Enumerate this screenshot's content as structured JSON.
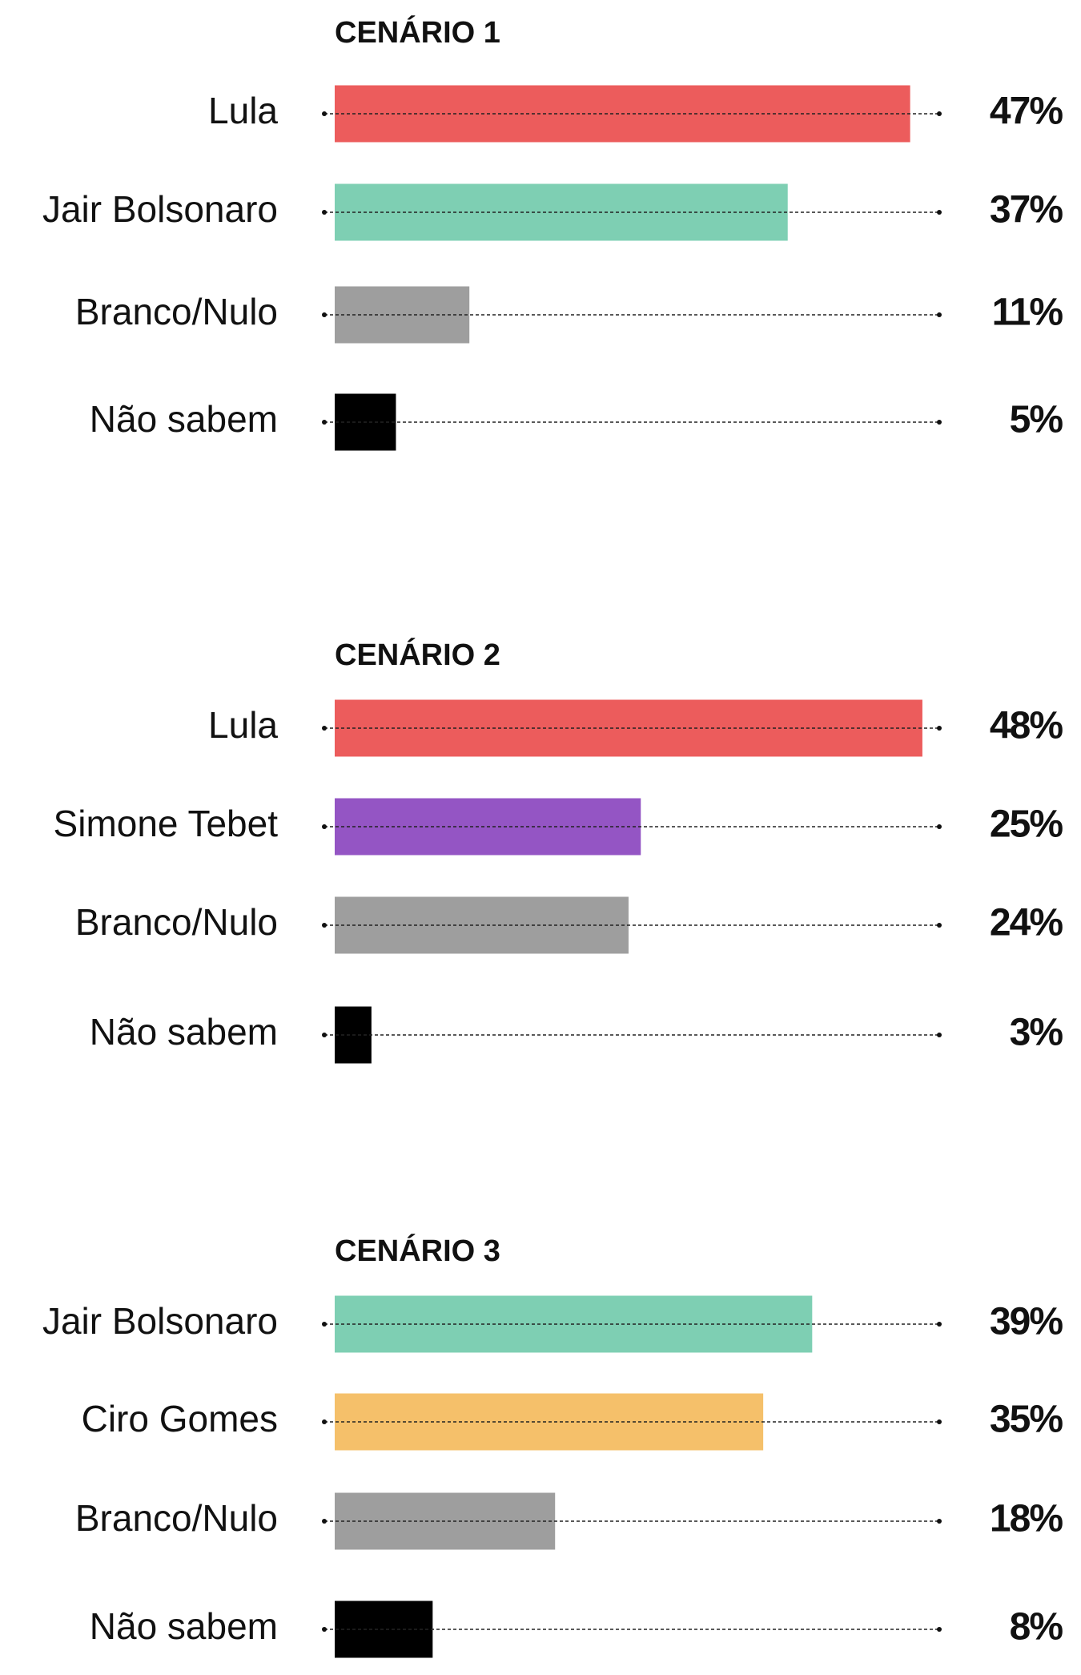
{
  "chart_data": [
    {
      "type": "bar",
      "title": "CENÁRIO 1",
      "categories": [
        "Lula",
        "Jair Bolsonaro",
        "Branco/Nulo",
        "Não sabem"
      ],
      "values": [
        47,
        37,
        11,
        5
      ],
      "value_labels": [
        "47%",
        "37%",
        "11%",
        "5%"
      ],
      "colors": [
        "#ec5c5c",
        "#7ecfb3",
        "#9e9e9e",
        "#000000"
      ]
    },
    {
      "type": "bar",
      "title": "CENÁRIO 2",
      "categories": [
        "Lula",
        "Simone Tebet",
        "Branco/Nulo",
        "Não sabem"
      ],
      "values": [
        48,
        25,
        24,
        3
      ],
      "value_labels": [
        "48%",
        "25%",
        "24%",
        "3%"
      ],
      "colors": [
        "#ec5c5c",
        "#9455c4",
        "#9e9e9e",
        "#000000"
      ]
    },
    {
      "type": "bar",
      "title": "CENÁRIO 3",
      "categories": [
        "Jair Bolsonaro",
        "Ciro Gomes",
        "Branco/Nulo",
        "Não sabem"
      ],
      "values": [
        39,
        35,
        18,
        8
      ],
      "value_labels": [
        "39%",
        "35%",
        "18%",
        "8%"
      ],
      "colors": [
        "#7ecfb3",
        "#f5c06a",
        "#9e9e9e",
        "#000000"
      ]
    }
  ]
}
